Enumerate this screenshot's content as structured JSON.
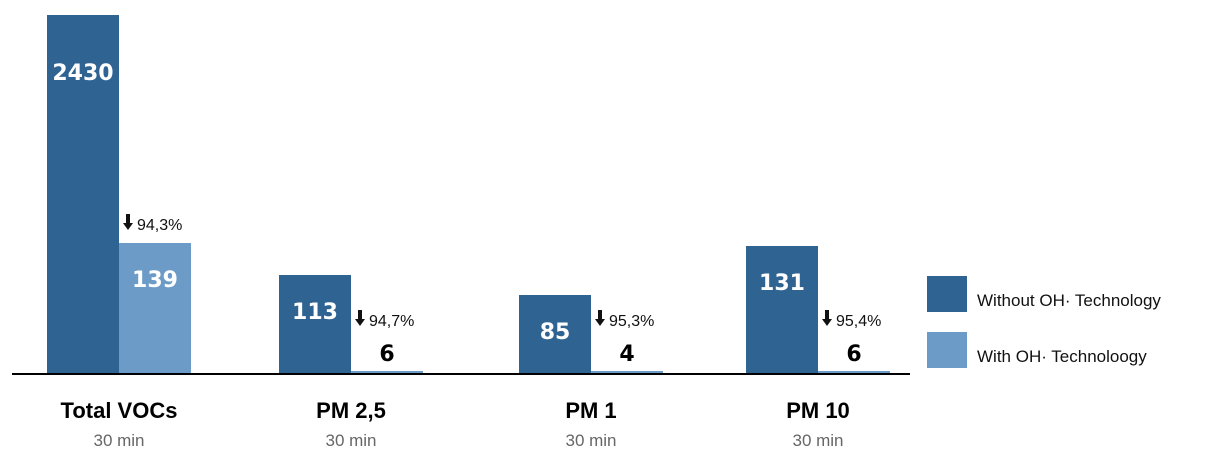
{
  "chart_data": {
    "type": "bar",
    "categories": [
      "Total VOCs",
      "PM 2,5",
      "PM 1",
      "PM 10"
    ],
    "subtitles": [
      "30 min",
      "30 min",
      "30 min",
      "30 min"
    ],
    "series": [
      {
        "name": "Without OH· Technology",
        "color": "#2f6391",
        "values": [
          2430,
          113,
          85,
          131
        ]
      },
      {
        "name": "With OH· Technoloogy",
        "color": "#6b9bc6",
        "values": [
          139,
          6,
          4,
          6
        ]
      }
    ],
    "reductions": [
      "94,3%",
      "94,7%",
      "95,3%",
      "95,4%"
    ],
    "reduction_direction": "down",
    "legend_position": "right",
    "grid": false,
    "scale": "broken",
    "note": ""
  }
}
